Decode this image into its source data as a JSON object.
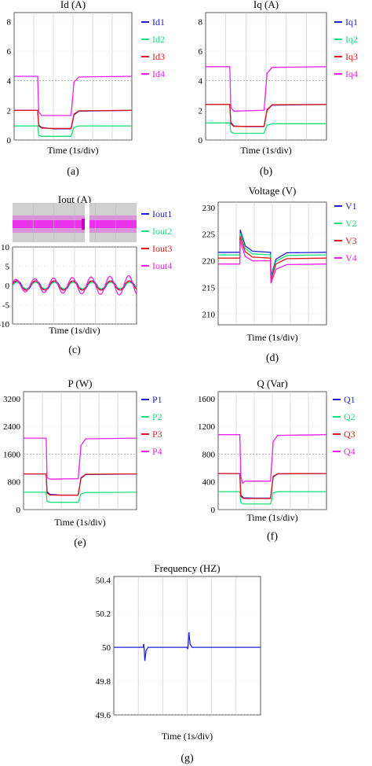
{
  "figure": {
    "colors": {
      "s1": "#1f1fd6",
      "s2": "#19e07a",
      "s3": "#e01a1a",
      "s4": "#ee22ee",
      "grid": "#c8c8c8",
      "ref": "#9a9a9a",
      "band": "#cfcfcf"
    }
  },
  "chart_data": [
    {
      "id": "a",
      "type": "line",
      "title": "Id (A)",
      "xlabel": "Time (1s/div)",
      "label": "(a)",
      "ylim": [
        0,
        8.6
      ],
      "yticks": [
        0,
        2,
        4,
        6,
        8
      ],
      "xlim": [
        0,
        6
      ],
      "grid": true,
      "legend": "right",
      "refline": 4,
      "series": [
        {
          "name": "Id1",
          "x": [
            0,
            1.2,
            1.25,
            1.4,
            2.0,
            2.9,
            3.05,
            3.3,
            6
          ],
          "y": [
            2.0,
            2.0,
            1.0,
            0.85,
            0.75,
            0.75,
            1.7,
            1.95,
            2.0
          ]
        },
        {
          "name": "Id2",
          "x": [
            0,
            1.2,
            1.25,
            1.4,
            2.0,
            2.9,
            3.05,
            3.3,
            6
          ],
          "y": [
            0.95,
            0.95,
            0.3,
            0.25,
            0.25,
            0.25,
            0.85,
            0.95,
            0.95
          ]
        },
        {
          "name": "Id3",
          "x": [
            0,
            1.2,
            1.25,
            1.4,
            2.0,
            2.9,
            3.05,
            3.3,
            6
          ],
          "y": [
            2.0,
            2.0,
            0.95,
            0.8,
            0.78,
            0.78,
            1.75,
            1.97,
            2.0
          ]
        },
        {
          "name": "Id4",
          "x": [
            0,
            1.2,
            1.25,
            1.4,
            2.9,
            3.05,
            3.3,
            6
          ],
          "y": [
            4.3,
            4.3,
            1.9,
            1.65,
            1.65,
            3.9,
            4.25,
            4.3
          ]
        }
      ]
    },
    {
      "id": "b",
      "type": "line",
      "title": "Iq (A)",
      "xlabel": "Time (1s/div)",
      "label": "(b)",
      "ylim": [
        0,
        8.6
      ],
      "yticks": [
        0,
        2,
        4,
        6,
        8
      ],
      "xlim": [
        0,
        6
      ],
      "grid": true,
      "legend": "right",
      "refline": 4,
      "series": [
        {
          "name": "Iq1",
          "x": [
            0,
            1.2,
            1.25,
            1.4,
            2.0,
            2.9,
            3.05,
            3.3,
            6
          ],
          "y": [
            2.4,
            2.4,
            1.2,
            0.95,
            0.9,
            0.9,
            2.0,
            2.35,
            2.4
          ]
        },
        {
          "name": "Iq2",
          "x": [
            0,
            1.2,
            1.25,
            1.4,
            2.0,
            2.9,
            3.05,
            3.3,
            6
          ],
          "y": [
            1.15,
            1.15,
            0.55,
            0.45,
            0.45,
            0.45,
            1.0,
            1.1,
            1.1
          ]
        },
        {
          "name": "Iq3",
          "x": [
            0,
            1.2,
            1.25,
            1.4,
            2.0,
            2.9,
            3.05,
            3.3,
            6
          ],
          "y": [
            2.4,
            2.4,
            1.1,
            0.92,
            0.92,
            0.92,
            2.05,
            2.38,
            2.4
          ]
        },
        {
          "name": "Iq4",
          "x": [
            0,
            1.2,
            1.25,
            1.4,
            2.9,
            3.05,
            3.3,
            6
          ],
          "y": [
            4.95,
            4.95,
            2.2,
            1.95,
            2.0,
            4.5,
            4.9,
            4.95
          ]
        }
      ]
    },
    {
      "id": "c",
      "type": "line",
      "title": "Iout (A)",
      "xlabel": "Time (1s/div)",
      "label": "(c)",
      "ylim": [
        -10,
        10
      ],
      "yticks": [
        -10,
        -5,
        0,
        5,
        10
      ],
      "xlim": [
        0,
        6
      ],
      "grid": true,
      "legend": "right",
      "series": [
        {
          "name": "Iout1",
          "amplitude": 1.2
        },
        {
          "name": "Iout2",
          "amplitude": 0.8
        },
        {
          "name": "Iout3",
          "amplitude": 1.2
        },
        {
          "name": "Iout4",
          "amplitude": 2.6
        }
      ]
    },
    {
      "id": "d",
      "type": "line",
      "title": "Voltage (V)",
      "xlabel": "Time (1s/div)",
      "label": "(d)",
      "ylim": [
        208,
        231
      ],
      "yticks": [
        210,
        215,
        220,
        225,
        230
      ],
      "xlim": [
        0,
        6
      ],
      "grid": true,
      "legend": "right",
      "series": [
        {
          "name": "V1",
          "x": [
            0,
            1.2,
            1.22,
            1.5,
            1.9,
            2.9,
            2.92,
            3.2,
            3.8,
            6
          ],
          "y": [
            221.6,
            221.6,
            225.8,
            222.8,
            221.8,
            221.6,
            217.0,
            220.3,
            221.5,
            221.6
          ]
        },
        {
          "name": "V2",
          "x": [
            0,
            1.2,
            1.22,
            1.5,
            1.9,
            2.9,
            2.92,
            3.2,
            3.8,
            6
          ],
          "y": [
            221.1,
            221.1,
            225.2,
            222.3,
            221.3,
            221.1,
            216.6,
            219.9,
            221.0,
            221.1
          ]
        },
        {
          "name": "V3",
          "x": [
            0,
            1.2,
            1.22,
            1.5,
            1.9,
            2.9,
            2.92,
            3.2,
            3.8,
            6
          ],
          "y": [
            220.5,
            220.5,
            224.6,
            221.7,
            220.7,
            220.5,
            216.3,
            219.4,
            220.4,
            220.5
          ]
        },
        {
          "name": "V4",
          "x": [
            0,
            1.2,
            1.22,
            1.5,
            1.9,
            2.9,
            2.92,
            3.2,
            3.8,
            6
          ],
          "y": [
            219.4,
            219.4,
            223.8,
            220.8,
            220.0,
            220.0,
            215.8,
            218.4,
            219.3,
            219.4
          ]
        }
      ]
    },
    {
      "id": "e",
      "type": "line",
      "title": "P (W)",
      "xlabel": "Time (1s/div)",
      "label": "(e)",
      "ylim": [
        0,
        3400
      ],
      "yticks": [
        0,
        800,
        1600,
        2400,
        3200
      ],
      "xlim": [
        0,
        6
      ],
      "grid": true,
      "legend": "right",
      "refline": 1600,
      "series": [
        {
          "name": "P1",
          "x": [
            0,
            1.2,
            1.25,
            1.4,
            2.0,
            2.9,
            3.05,
            3.3,
            6
          ],
          "y": [
            1030,
            1030,
            520,
            440,
            420,
            420,
            900,
            1010,
            1030
          ]
        },
        {
          "name": "P2",
          "x": [
            0,
            1.2,
            1.25,
            1.4,
            2.0,
            2.9,
            3.05,
            3.3,
            6
          ],
          "y": [
            500,
            500,
            240,
            210,
            210,
            210,
            450,
            495,
            500
          ]
        },
        {
          "name": "P3",
          "x": [
            0,
            1.2,
            1.25,
            1.4,
            2.0,
            2.9,
            3.05,
            3.3,
            6
          ],
          "y": [
            1030,
            1030,
            480,
            420,
            415,
            415,
            920,
            1020,
            1030
          ]
        },
        {
          "name": "P4",
          "x": [
            0,
            1.2,
            1.25,
            1.4,
            2.9,
            3.05,
            3.3,
            6
          ],
          "y": [
            2060,
            2060,
            920,
            880,
            890,
            1850,
            2040,
            2060
          ]
        }
      ]
    },
    {
      "id": "f",
      "type": "line",
      "title": "Q (Var)",
      "xlabel": "Time (1s/div)",
      "label": "(f)",
      "ylim": [
        0,
        1700
      ],
      "yticks": [
        0,
        400,
        800,
        1200,
        1600
      ],
      "xlim": [
        0,
        6
      ],
      "grid": true,
      "legend": "right",
      "refline": 800,
      "series": [
        {
          "name": "Q1",
          "x": [
            0,
            1.2,
            1.25,
            1.4,
            2.0,
            2.9,
            3.05,
            3.3,
            6
          ],
          "y": [
            520,
            520,
            210,
            170,
            165,
            165,
            470,
            515,
            520
          ]
        },
        {
          "name": "Q2",
          "x": [
            0,
            1.2,
            1.25,
            1.4,
            2.0,
            2.9,
            3.05,
            3.3,
            6
          ],
          "y": [
            260,
            260,
            100,
            80,
            80,
            80,
            240,
            258,
            260
          ]
        },
        {
          "name": "Q3",
          "x": [
            0,
            1.2,
            1.25,
            1.4,
            2.0,
            2.9,
            3.05,
            3.3,
            6
          ],
          "y": [
            520,
            520,
            190,
            160,
            160,
            160,
            480,
            518,
            520
          ]
        },
        {
          "name": "Q4",
          "x": [
            0,
            1.2,
            1.25,
            1.35,
            1.5,
            2.9,
            3.05,
            3.3,
            6
          ],
          "y": [
            1080,
            1080,
            480,
            380,
            410,
            410,
            980,
            1070,
            1080
          ]
        }
      ]
    },
    {
      "id": "g",
      "type": "line",
      "title": "Frequency (HZ)",
      "xlabel": "Time (1s/div)",
      "label": "(g)",
      "ylim": [
        49.6,
        50.42
      ],
      "yticks": [
        49.6,
        49.8,
        50,
        50.2,
        50.4
      ],
      "xlim": [
        0,
        6
      ],
      "grid": true,
      "series": [
        {
          "x": [
            0,
            1.2,
            1.23,
            1.27,
            1.32,
            1.4,
            3.0,
            3.03,
            3.07,
            3.12,
            3.2,
            6
          ],
          "y": [
            50.0,
            50.0,
            50.02,
            49.92,
            49.98,
            50.0,
            50.0,
            49.99,
            50.09,
            50.02,
            50.0,
            50.0
          ]
        }
      ]
    }
  ]
}
